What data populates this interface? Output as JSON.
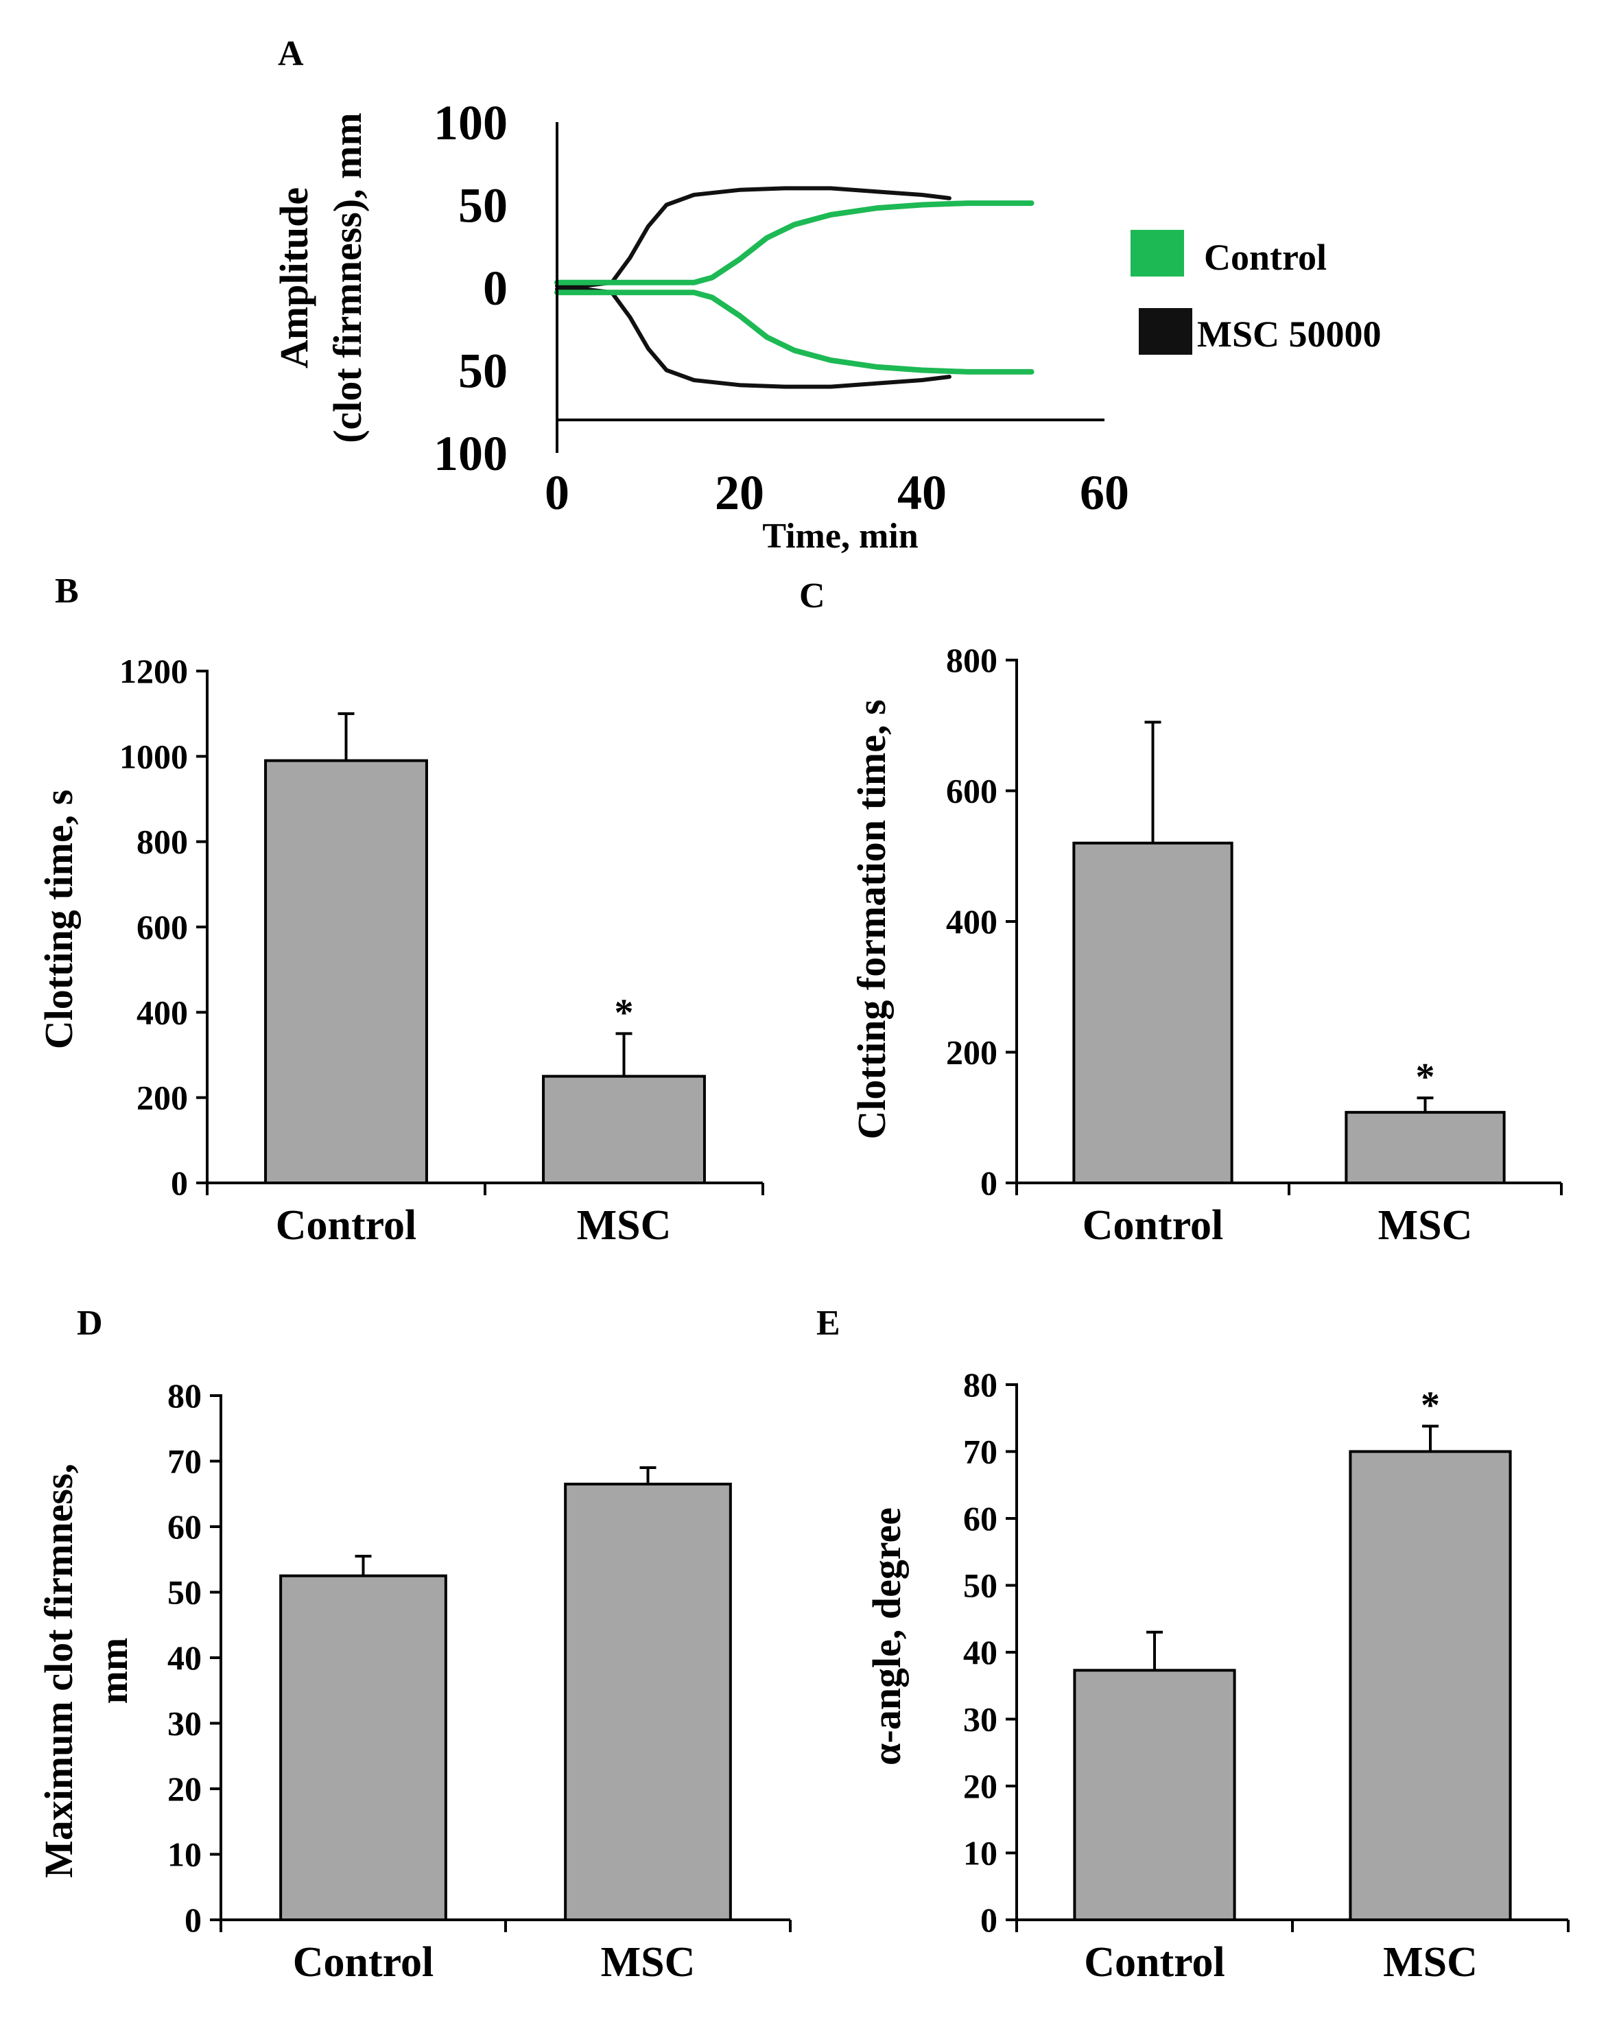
{
  "chart_data": [
    {
      "id": "A",
      "panel_label": "A",
      "type": "line",
      "xlabel": "Time, min",
      "ylabel_lines": [
        "Amplitude",
        "(clot firmness), mm"
      ],
      "xlim": [
        0,
        60
      ],
      "ylim": [
        -100,
        100
      ],
      "x_ticks": [
        "0",
        "20",
        "40",
        "60"
      ],
      "y_ticks": [
        "100",
        "50",
        "0",
        "50",
        "100"
      ],
      "y_tick_values": [
        100,
        50,
        0,
        -50,
        -100
      ],
      "x_tick_values": [
        0,
        20,
        40,
        60
      ],
      "series": [
        {
          "name": "Control",
          "color": "#1db954",
          "x": [
            0,
            5,
            10,
            15,
            17,
            20,
            23,
            26,
            30,
            35,
            40,
            45,
            50,
            52
          ],
          "y": [
            3,
            3,
            3,
            3,
            6,
            17,
            30,
            38,
            44,
            48,
            50,
            51,
            51,
            51
          ]
        },
        {
          "name": "MSC 50000",
          "color": "#111111",
          "x": [
            0,
            3,
            6,
            8,
            10,
            12,
            15,
            20,
            25,
            30,
            35,
            40,
            43
          ],
          "y": [
            1,
            1,
            3,
            18,
            37,
            50,
            56,
            59,
            60,
            60,
            58,
            56,
            54
          ]
        }
      ]
    },
    {
      "id": "B",
      "panel_label": "B",
      "type": "bar",
      "categories": [
        "Control",
        "MSC"
      ],
      "values": [
        990,
        250
      ],
      "errors": [
        110,
        100
      ],
      "significance": [
        "",
        "*"
      ],
      "ylabel": "Clotting time, s",
      "ylim": [
        0,
        1200
      ],
      "y_ticks": [
        "0",
        "200",
        "400",
        "600",
        "800",
        "1000",
        "1200"
      ],
      "y_tick_values": [
        0,
        200,
        400,
        600,
        800,
        1000,
        1200
      ]
    },
    {
      "id": "C",
      "panel_label": "C",
      "type": "bar",
      "categories": [
        "Control",
        "MSC"
      ],
      "values": [
        520,
        108
      ],
      "errors": [
        185,
        22
      ],
      "significance": [
        "",
        "*"
      ],
      "ylabel": "Clotting formation time, s",
      "ylim": [
        0,
        800
      ],
      "y_ticks": [
        "0",
        "200",
        "400",
        "600",
        "800"
      ],
      "y_tick_values": [
        0,
        200,
        400,
        600,
        800
      ]
    },
    {
      "id": "D",
      "panel_label": "D",
      "type": "bar",
      "categories": [
        "Control",
        "MSC"
      ],
      "values": [
        52.5,
        66.5
      ],
      "errors": [
        3,
        2.5
      ],
      "significance": [
        "",
        ""
      ],
      "ylabel_lines": [
        "Maximum clot firmness,",
        "mm"
      ],
      "ylim": [
        0,
        80
      ],
      "y_ticks": [
        "0",
        "10",
        "20",
        "30",
        "40",
        "50",
        "60",
        "70",
        "80"
      ],
      "y_tick_values": [
        0,
        10,
        20,
        30,
        40,
        50,
        60,
        70,
        80
      ]
    },
    {
      "id": "E",
      "panel_label": "E",
      "type": "bar",
      "categories": [
        "Control",
        "MSC"
      ],
      "values": [
        37.3,
        70
      ],
      "errors": [
        5.7,
        3.8
      ],
      "significance": [
        "",
        "*"
      ],
      "ylabel": "α-angle, degree",
      "ylim": [
        0,
        80
      ],
      "y_ticks": [
        "0",
        "10",
        "20",
        "30",
        "40",
        "50",
        "60",
        "70",
        "80"
      ],
      "y_tick_values": [
        0,
        10,
        20,
        30,
        40,
        50,
        60,
        70,
        80
      ]
    }
  ],
  "colors": {
    "bar_fill": "#a6a6a6",
    "axis": "#000000"
  }
}
